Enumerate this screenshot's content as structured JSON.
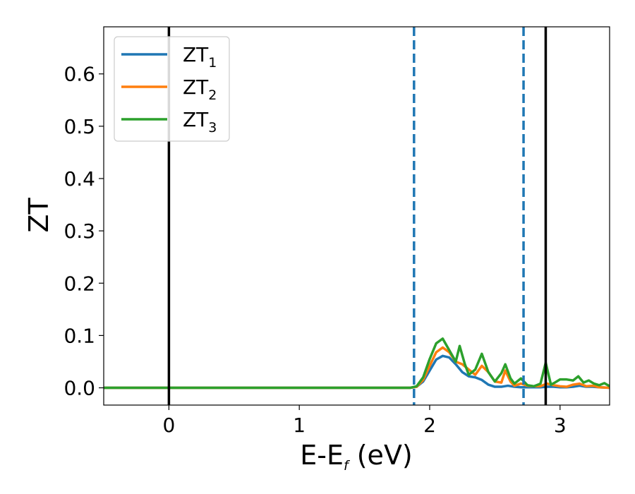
{
  "chart_data": {
    "type": "line",
    "title": "",
    "xlabel": {
      "main": "E-E",
      "sub": "f",
      "unit": " (eV)"
    },
    "ylabel": "ZT",
    "xlim": [
      -0.5,
      3.38
    ],
    "ylim": [
      -0.033,
      0.69
    ],
    "xticks": [
      0,
      1,
      2,
      3
    ],
    "yticks": [
      0.0,
      0.1,
      0.2,
      0.3,
      0.4,
      0.5,
      0.6
    ],
    "ytick_labels": [
      "0.0",
      "0.1",
      "0.2",
      "0.3",
      "0.4",
      "0.5",
      "0.6"
    ],
    "grid": false,
    "legend_position": "top-left",
    "vlines": [
      {
        "x": 0.0,
        "style": "solid",
        "color": "#000000"
      },
      {
        "x": 1.88,
        "style": "dashed",
        "color": "#1f77b4"
      },
      {
        "x": 2.72,
        "style": "dashed",
        "color": "#1f77b4"
      },
      {
        "x": 2.89,
        "style": "solid",
        "color": "#000000"
      }
    ],
    "series": [
      {
        "name": "ZT",
        "sub": "1",
        "color": "#1f77b4",
        "x": [
          -0.5,
          1.85,
          1.9,
          1.95,
          2.0,
          2.05,
          2.1,
          2.15,
          2.2,
          2.25,
          2.3,
          2.35,
          2.4,
          2.45,
          2.5,
          2.55,
          2.6,
          2.65,
          2.7,
          2.75,
          2.8,
          2.85,
          2.9,
          2.95,
          3.0,
          3.05,
          3.1,
          3.15,
          3.2,
          3.25,
          3.3,
          3.38
        ],
        "y": [
          0,
          0,
          0.002,
          0.012,
          0.033,
          0.054,
          0.061,
          0.058,
          0.045,
          0.03,
          0.022,
          0.02,
          0.015,
          0.006,
          0.002,
          0.002,
          0.004,
          0.002,
          0.001,
          0.001,
          0.001,
          0.001,
          0.002,
          0.002,
          0.001,
          0.001,
          0.002,
          0.004,
          0.002,
          0.002,
          0.001,
          0.0
        ]
      },
      {
        "name": "ZT",
        "sub": "2",
        "color": "#ff7f0e",
        "x": [
          -0.5,
          1.85,
          1.9,
          1.95,
          2.0,
          2.05,
          2.1,
          2.15,
          2.2,
          2.25,
          2.3,
          2.35,
          2.4,
          2.45,
          2.5,
          2.55,
          2.58,
          2.62,
          2.65,
          2.7,
          2.75,
          2.8,
          2.85,
          2.9,
          2.95,
          3.0,
          3.05,
          3.1,
          3.15,
          3.2,
          3.25,
          3.3,
          3.38
        ],
        "y": [
          0,
          0,
          0.002,
          0.015,
          0.042,
          0.068,
          0.077,
          0.068,
          0.05,
          0.045,
          0.035,
          0.025,
          0.042,
          0.03,
          0.012,
          0.01,
          0.033,
          0.012,
          0.004,
          0.008,
          0.004,
          0.003,
          0.003,
          0.008,
          0.005,
          0.003,
          0.002,
          0.006,
          0.008,
          0.003,
          0.004,
          0.001,
          0.0
        ]
      },
      {
        "name": "ZT",
        "sub": "3",
        "color": "#2ca02c",
        "x": [
          -0.5,
          1.85,
          1.9,
          1.95,
          2.0,
          2.05,
          2.1,
          2.15,
          2.2,
          2.23,
          2.27,
          2.3,
          2.35,
          2.4,
          2.45,
          2.5,
          2.55,
          2.58,
          2.62,
          2.65,
          2.7,
          2.75,
          2.8,
          2.85,
          2.89,
          2.93,
          2.96,
          3.0,
          3.05,
          3.1,
          3.14,
          3.18,
          3.22,
          3.26,
          3.3,
          3.34,
          3.38
        ],
        "y": [
          0,
          0,
          0.003,
          0.02,
          0.055,
          0.085,
          0.094,
          0.072,
          0.05,
          0.08,
          0.045,
          0.025,
          0.035,
          0.065,
          0.03,
          0.012,
          0.028,
          0.045,
          0.018,
          0.008,
          0.018,
          0.005,
          0.003,
          0.008,
          0.048,
          0.006,
          0.01,
          0.016,
          0.016,
          0.014,
          0.022,
          0.01,
          0.014,
          0.008,
          0.005,
          0.009,
          0.003
        ]
      }
    ]
  }
}
